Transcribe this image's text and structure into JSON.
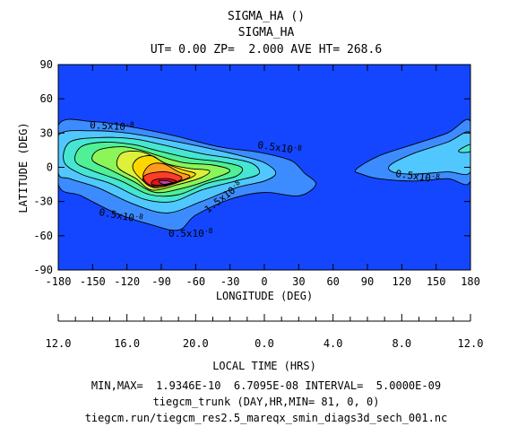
{
  "chart_data": {
    "type": "contour",
    "title_lines": [
      "SIGMA_HA ()",
      "SIGMA_HA",
      "UT= 0.00 ZP=  2.000 AVE HT= 268.6"
    ],
    "xlabel": "LONGITUDE (DEG)",
    "ylabel": "LATITUDE (DEG)",
    "xlim": [
      -180,
      180
    ],
    "ylim": [
      -90,
      90
    ],
    "xticks": [
      -180,
      -150,
      -120,
      -90,
      -60,
      -30,
      0,
      30,
      60,
      90,
      120,
      150,
      180
    ],
    "yticks": [
      -90,
      -60,
      -30,
      0,
      30,
      60,
      90
    ],
    "local_time": {
      "label": "LOCAL TIME (HRS)",
      "tick_labels": [
        "12.0",
        "16.0",
        "20.0",
        "0.0",
        "4.0",
        "8.0",
        "12.0"
      ]
    },
    "contour_labels": [
      "0.5x10",
      "0.5x10",
      "0.5x10",
      "0.5x10",
      "0.5x10",
      "1.5x10"
    ],
    "contour_label_exponent": "-8",
    "contour_interval": 5e-09,
    "min": 1.9346e-10,
    "max": 6.7095e-08,
    "footer_lines": [
      "MIN,MAX=  1.9346E-10  6.7095E-08 INTERVAL=  5.0000E-09",
      "tiegcm_trunk (DAY,HR,MIN= 81, 0, 0)",
      "tiegcm.run/tiegcm_res2.5_mareqx_smin_diags3d_sech_001.nc"
    ],
    "colors": {
      "background": "#1446ff",
      "levels": [
        "#1446ff",
        "#3c8cff",
        "#50c8ff",
        "#46e6d2",
        "#50f096",
        "#8cf55a",
        "#dcf03c",
        "#ffd700",
        "#ff9b1e",
        "#ff3c28",
        "#dc141e",
        "#c83cb4"
      ]
    }
  }
}
